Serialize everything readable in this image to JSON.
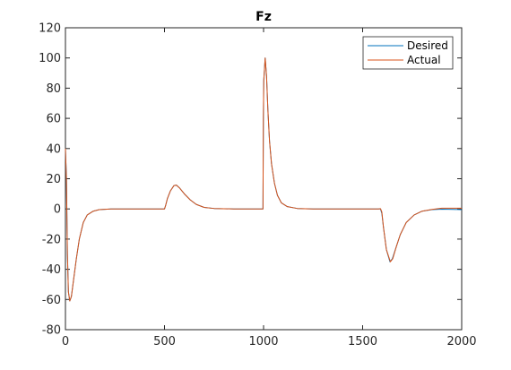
{
  "chart_data": {
    "type": "line",
    "title": "Fz",
    "xlabel": "",
    "ylabel": "",
    "xlim": [
      0,
      2000
    ],
    "ylim": [
      -80,
      120
    ],
    "xticks": [
      0,
      500,
      1000,
      1500,
      2000
    ],
    "yticks": [
      -80,
      -60,
      -40,
      -20,
      0,
      20,
      40,
      60,
      80,
      100,
      120
    ],
    "grid": false,
    "legend_position": "top-right",
    "series": [
      {
        "name": "Desired",
        "color": "#0072BD",
        "points": [
          [
            0,
            40
          ],
          [
            5,
            20
          ],
          [
            10,
            -30
          ],
          [
            15,
            -55
          ],
          [
            22,
            -61
          ],
          [
            30,
            -58
          ],
          [
            40,
            -48
          ],
          [
            55,
            -33
          ],
          [
            70,
            -20
          ],
          [
            90,
            -9
          ],
          [
            110,
            -4
          ],
          [
            140,
            -1.5
          ],
          [
            170,
            -0.5
          ],
          [
            230,
            0
          ],
          [
            300,
            0
          ],
          [
            400,
            0
          ],
          [
            480,
            0
          ],
          [
            500,
            0
          ],
          [
            505,
            2
          ],
          [
            515,
            7
          ],
          [
            530,
            12
          ],
          [
            548,
            15.5
          ],
          [
            560,
            15.8
          ],
          [
            575,
            14
          ],
          [
            600,
            10
          ],
          [
            630,
            6
          ],
          [
            660,
            3
          ],
          [
            700,
            1
          ],
          [
            750,
            0.3
          ],
          [
            850,
            0
          ],
          [
            950,
            0
          ],
          [
            997,
            0
          ],
          [
            999,
            60
          ],
          [
            1001,
            85
          ],
          [
            1008,
            100
          ],
          [
            1015,
            88
          ],
          [
            1022,
            65
          ],
          [
            1030,
            45
          ],
          [
            1040,
            30
          ],
          [
            1055,
            17
          ],
          [
            1070,
            9
          ],
          [
            1090,
            4
          ],
          [
            1120,
            1.5
          ],
          [
            1170,
            0.3
          ],
          [
            1250,
            0
          ],
          [
            1400,
            0
          ],
          [
            1500,
            0
          ],
          [
            1590,
            0
          ],
          [
            1597,
            -3
          ],
          [
            1605,
            -12
          ],
          [
            1620,
            -27
          ],
          [
            1638,
            -35
          ],
          [
            1650,
            -33
          ],
          [
            1670,
            -25
          ],
          [
            1690,
            -17
          ],
          [
            1720,
            -9
          ],
          [
            1760,
            -4
          ],
          [
            1800,
            -1.5
          ],
          [
            1850,
            -0.5
          ],
          [
            1900,
            -0.2
          ],
          [
            1960,
            -0.3
          ],
          [
            2000,
            -0.5
          ]
        ]
      },
      {
        "name": "Actual",
        "color": "#D95319",
        "points": [
          [
            0,
            40
          ],
          [
            5,
            20
          ],
          [
            10,
            -30
          ],
          [
            15,
            -55
          ],
          [
            22,
            -61
          ],
          [
            30,
            -58
          ],
          [
            40,
            -48
          ],
          [
            55,
            -33
          ],
          [
            70,
            -20
          ],
          [
            90,
            -9
          ],
          [
            110,
            -4
          ],
          [
            140,
            -1.5
          ],
          [
            170,
            -0.5
          ],
          [
            230,
            0
          ],
          [
            300,
            0
          ],
          [
            400,
            0
          ],
          [
            480,
            0
          ],
          [
            500,
            0
          ],
          [
            505,
            2
          ],
          [
            515,
            7
          ],
          [
            530,
            12
          ],
          [
            548,
            15.5
          ],
          [
            560,
            15.8
          ],
          [
            575,
            14
          ],
          [
            600,
            10
          ],
          [
            630,
            6
          ],
          [
            660,
            3
          ],
          [
            700,
            1
          ],
          [
            750,
            0.3
          ],
          [
            850,
            0
          ],
          [
            950,
            0
          ],
          [
            997,
            0
          ],
          [
            999,
            60
          ],
          [
            1001,
            85
          ],
          [
            1008,
            100
          ],
          [
            1015,
            88
          ],
          [
            1022,
            65
          ],
          [
            1030,
            45
          ],
          [
            1040,
            30
          ],
          [
            1055,
            17
          ],
          [
            1070,
            9
          ],
          [
            1090,
            4
          ],
          [
            1120,
            1.5
          ],
          [
            1170,
            0.3
          ],
          [
            1250,
            0
          ],
          [
            1400,
            0
          ],
          [
            1500,
            0
          ],
          [
            1580,
            0
          ],
          [
            1590,
            0.2
          ],
          [
            1597,
            -2
          ],
          [
            1605,
            -12
          ],
          [
            1620,
            -27
          ],
          [
            1640,
            -35
          ],
          [
            1652,
            -33
          ],
          [
            1670,
            -25
          ],
          [
            1690,
            -17
          ],
          [
            1720,
            -9
          ],
          [
            1760,
            -4
          ],
          [
            1800,
            -1.5
          ],
          [
            1850,
            -0.3
          ],
          [
            1900,
            0.5
          ],
          [
            1960,
            0.5
          ],
          [
            2000,
            0.5
          ]
        ]
      }
    ]
  }
}
